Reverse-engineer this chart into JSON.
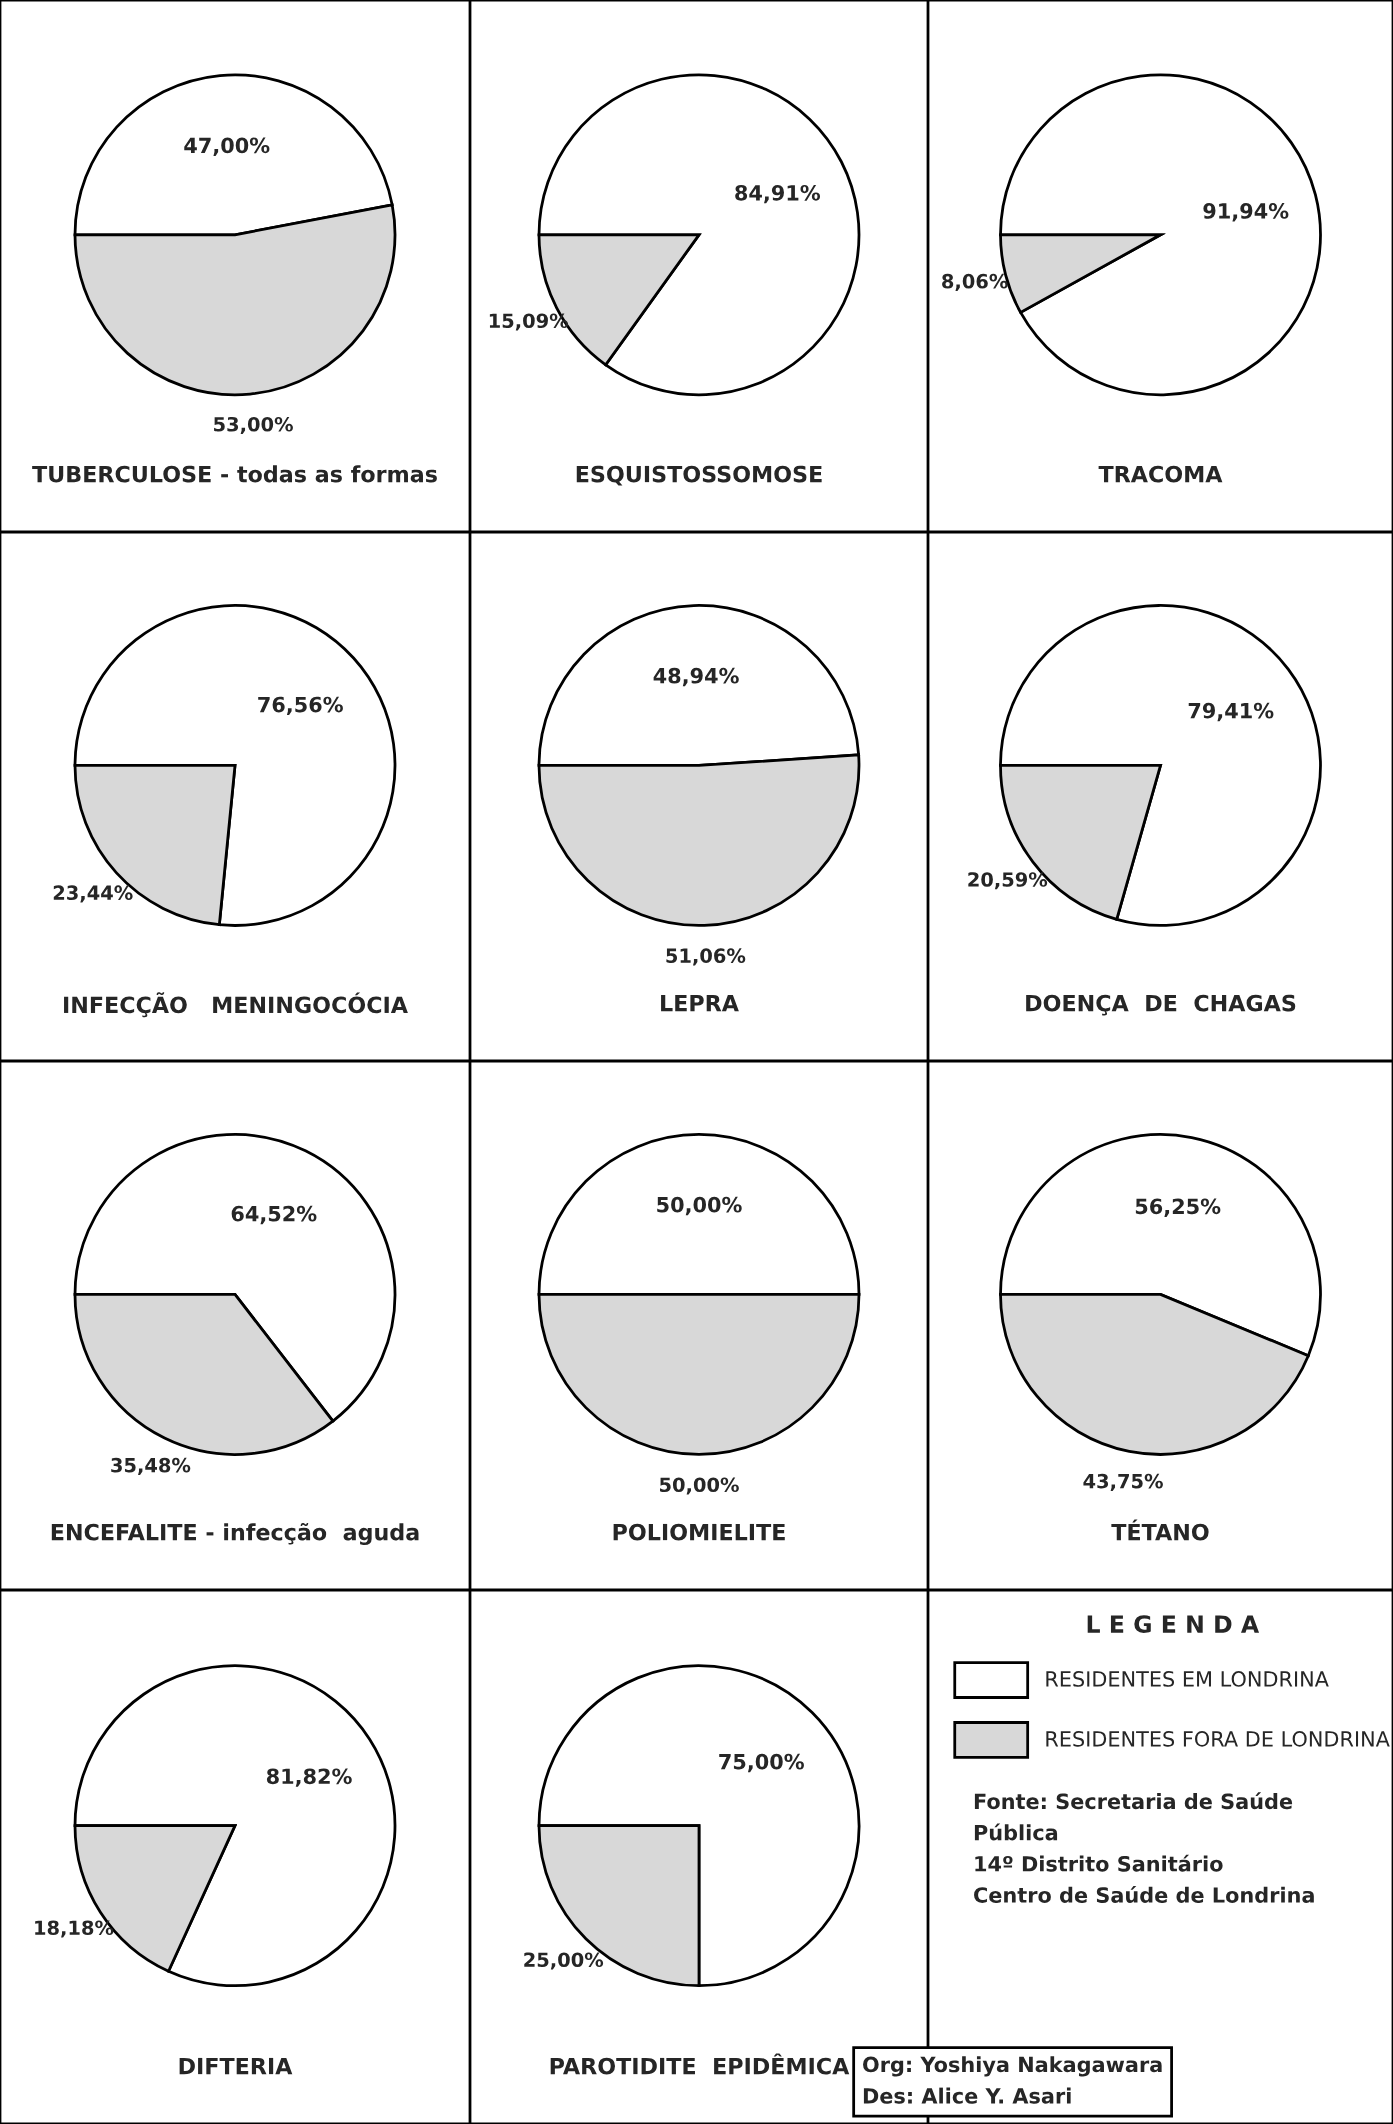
{
  "chart_data": [
    {
      "type": "pie",
      "title": "TUBERCULOSE - todas as formas",
      "categories": [
        "RESIDENTES EM LONDRINA",
        "RESIDENTES FORA DE LONDRINA"
      ],
      "values": [
        47.0,
        53.0
      ],
      "value_labels": [
        "47,00%",
        "53,00%"
      ],
      "colors": [
        "#ffffff",
        "#d8d8d8"
      ],
      "legend": "bottom right",
      "legend_title": "L E G E N D A"
    },
    {
      "type": "pie",
      "title": "ESQUISTOSSOMOSE",
      "categories": [
        null,
        null
      ],
      "values": [
        84.91,
        15.09
      ],
      "value_labels": [
        "84,91%",
        "15,09%"
      ],
      "colors": [
        "#ffffff",
        "#d8d8d8"
      ]
    },
    {
      "type": "pie",
      "title": "TRACOMA",
      "categories": [
        null,
        null
      ],
      "values": [
        91.94,
        8.06
      ],
      "value_labels": [
        "91,94%",
        "8,06%"
      ],
      "colors": [
        "#ffffff",
        "#d8d8d8"
      ]
    },
    {
      "type": "pie",
      "title": "INFECÇÃO   MENINGOCÓCIA",
      "categories": [
        null,
        null
      ],
      "values": [
        76.56,
        23.44
      ],
      "value_labels": [
        "76,56%",
        "23,44%"
      ],
      "colors": [
        "#ffffff",
        "#d8d8d8"
      ]
    },
    {
      "type": "pie",
      "title": "LEPRA",
      "categories": [
        null,
        null
      ],
      "values": [
        48.94,
        51.06
      ],
      "value_labels": [
        "48,94%",
        "51,06%"
      ],
      "colors": [
        "#ffffff",
        "#d8d8d8"
      ]
    },
    {
      "type": "pie",
      "title": "DOENÇA  DE  CHAGAS",
      "categories": [
        null,
        null
      ],
      "values": [
        79.41,
        20.59
      ],
      "value_labels": [
        "79,41%",
        "20,59%"
      ],
      "colors": [
        "#ffffff",
        "#d8d8d8"
      ]
    },
    {
      "type": "pie",
      "title": "ENCEFALITE - infecção  aguda",
      "categories": [
        null,
        null
      ],
      "values": [
        64.52,
        35.48
      ],
      "value_labels": [
        "64,52%",
        "35,48%"
      ],
      "colors": [
        "#ffffff",
        "#d8d8d8"
      ]
    },
    {
      "type": "pie",
      "title": "POLIOMIELITE",
      "categories": [
        null,
        null
      ],
      "values": [
        50.0,
        50.0
      ],
      "value_labels": [
        "50,00%",
        "50,00%"
      ],
      "colors": [
        "#ffffff",
        "#d8d8d8"
      ]
    },
    {
      "type": "pie",
      "title": "TÉTANO",
      "categories": [
        null,
        null
      ],
      "values": [
        56.25,
        43.75
      ],
      "value_labels": [
        "56,25%",
        "43,75%"
      ],
      "colors": [
        "#ffffff",
        "#d8d8d8"
      ]
    },
    {
      "type": "pie",
      "title": "DIFTERIA",
      "categories": [
        null,
        null
      ],
      "values": [
        81.82,
        18.18
      ],
      "value_labels": [
        "81,82%",
        "18,18%"
      ],
      "colors": [
        "#ffffff",
        "#d8d8d8"
      ]
    },
    {
      "type": "pie",
      "title": "PAROTIDITE  EPIDÊMICA",
      "categories": [
        null,
        null
      ],
      "values": [
        75.0,
        25.0
      ],
      "value_labels": [
        "75,00%",
        "25,00%"
      ],
      "colors": [
        "#ffffff",
        "#d8d8d8"
      ]
    },
    {
      "type": "other",
      "annotations": [
        "Fonte: Secretaria de Saúde\nPública\n14º Distrito Sanitário\nCentro de Saúde de Londrina",
        "Org: Yoshiya Nakagawara\nDes: Alice Y. Asari"
      ]
    }
  ]
}
